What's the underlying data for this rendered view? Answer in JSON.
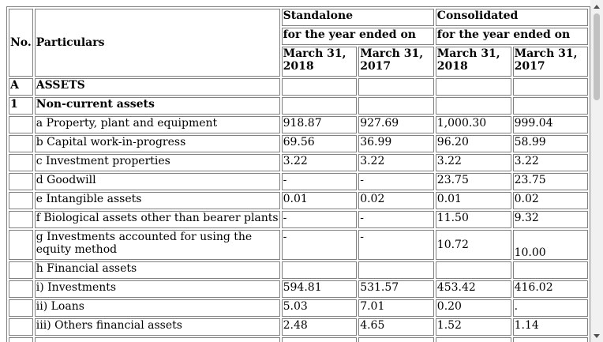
{
  "header": {
    "no": "No.",
    "particulars": "Particulars",
    "standalone": "Standalone",
    "consolidated": "Consolidated",
    "period": "for the year ended on",
    "dates": [
      "March 31, 2018",
      "March 31, 2017",
      "March 31, 2018",
      "March 31, 2017"
    ]
  },
  "rows": [
    {
      "no": "A",
      "label": "ASSETS",
      "bold": true,
      "values": [
        "",
        "",
        "",
        ""
      ]
    },
    {
      "no": "1",
      "label": "Non-current assets",
      "bold": true,
      "values": [
        "",
        "",
        "",
        ""
      ]
    },
    {
      "no": "",
      "label": "a Property, plant and equipment",
      "values": [
        "918.87",
        "927.69",
        "1,000.30",
        "999.04"
      ]
    },
    {
      "no": "",
      "label": "b Capital work-in-progress",
      "values": [
        "69.56",
        "36.99",
        "96.20",
        "58.99"
      ]
    },
    {
      "no": "",
      "label": "c Investment properties",
      "values": [
        "3.22",
        "3.22",
        "3.22",
        "3.22"
      ]
    },
    {
      "no": "",
      "label": "d Goodwill",
      "values": [
        "-",
        "-",
        "23.75",
        "23.75"
      ]
    },
    {
      "no": "",
      "label": "e Intangible assets",
      "values": [
        "0.01",
        "0.02",
        "0.01",
        "0.02"
      ]
    },
    {
      "no": "",
      "label": "f Biological assets other than bearer plants",
      "values": [
        "-",
        "-",
        "11.50",
        "9.32"
      ]
    },
    {
      "no": "",
      "label": "g Investments accounted for using the equity method",
      "tall": true,
      "values": [
        "-",
        "-",
        "10.72",
        "10.00"
      ]
    },
    {
      "no": "",
      "label": "h Financial assets",
      "values": [
        "",
        "",
        "",
        ""
      ]
    },
    {
      "no": "",
      "label": "i) Investments",
      "values": [
        "594.81",
        "531.57",
        "453.42",
        "416.02"
      ]
    },
    {
      "no": "",
      "label": "ii) Loans",
      "values": [
        "5.03",
        "7.01",
        "0.20",
        "."
      ]
    },
    {
      "no": "",
      "label": "iii) Others financial assets",
      "values": [
        "2.48",
        "4.65",
        "1.52",
        "1.14"
      ]
    },
    {
      "no": "",
      "label": "",
      "values": [
        "",
        "",
        "",
        ""
      ]
    }
  ]
}
